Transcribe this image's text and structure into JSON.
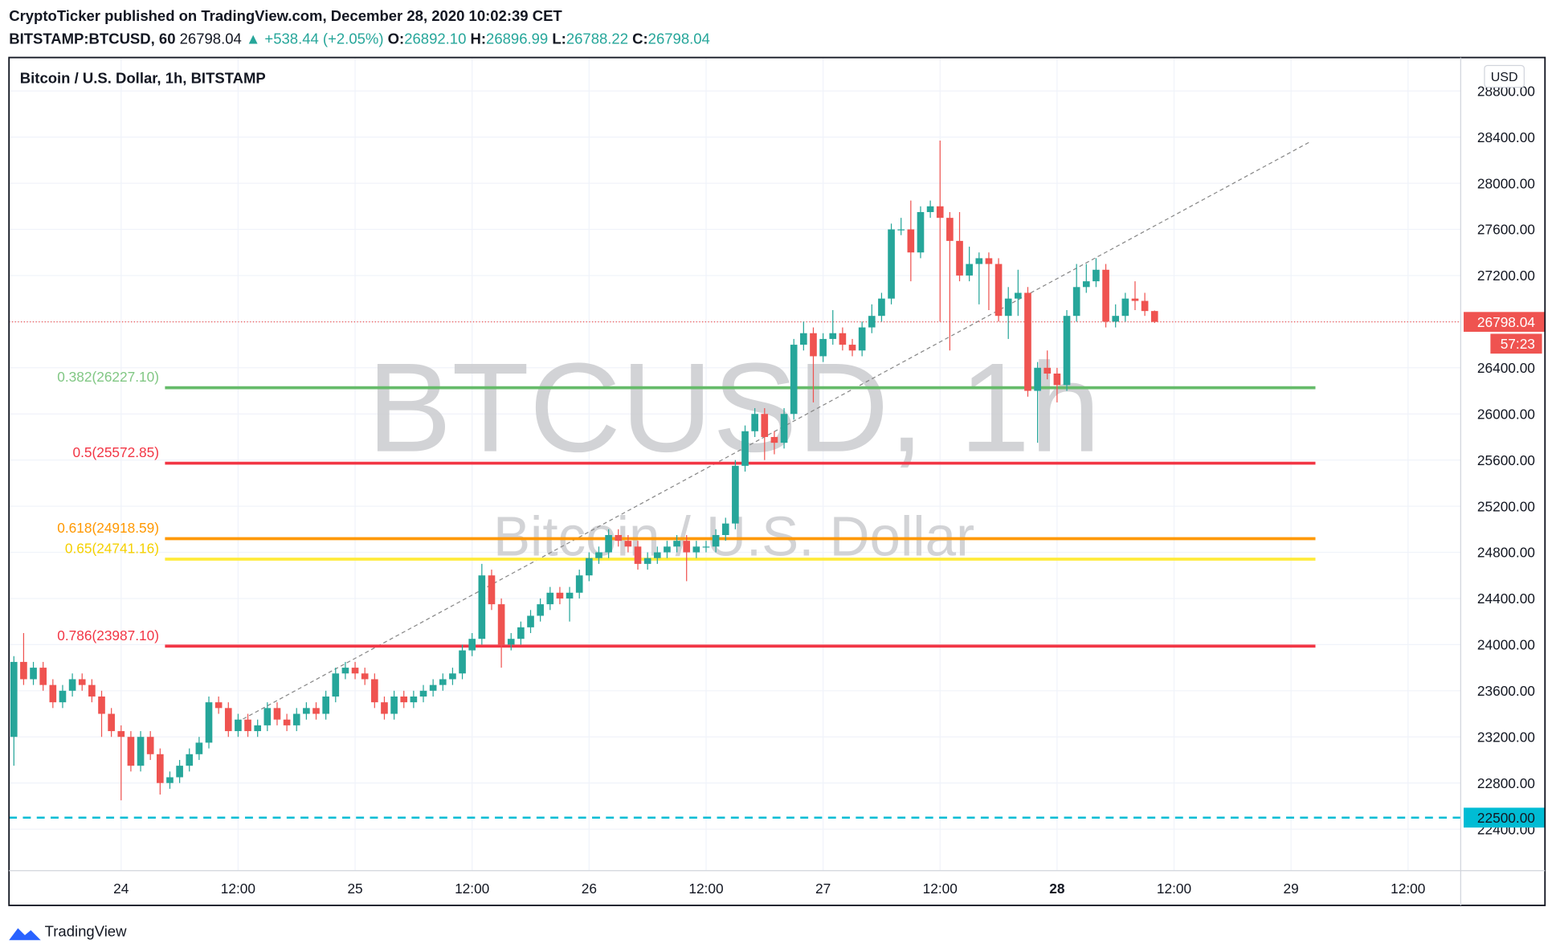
{
  "header": {
    "published": "CryptoTicker published on TradingView.com, December 28, 2020 10:02:39 CET",
    "symbol": "BITSTAMP:BTCUSD, 60",
    "last": "26798.04",
    "arrow": "▲",
    "change": "+538.44 (+2.05%)",
    "o_label": "O:",
    "o": "26892.10",
    "h_label": "H:",
    "h": "26896.99",
    "l_label": "L:",
    "l": "26788.22",
    "c_label": "C:",
    "c": "26798.04"
  },
  "footer": {
    "brand": "TradingView"
  },
  "chart_data": {
    "type": "candlestick",
    "title": "Bitcoin / U.S. Dollar, 1h, BITSTAMP",
    "currency": "USD",
    "watermark": "BTCUSD, 1h",
    "watermark_sub": "Bitcoin / U.S. Dollar",
    "up_color": "#26a69a",
    "down_color": "#ef5350",
    "xlim": [
      -0.5,
      148.4
    ],
    "xticks": [
      {
        "value": 11,
        "label": "24"
      },
      {
        "value": 23,
        "label": "12:00"
      },
      {
        "value": 35,
        "label": "25"
      },
      {
        "value": 47,
        "label": "12:00"
      },
      {
        "value": 59,
        "label": "26"
      },
      {
        "value": 71,
        "label": "12:00"
      },
      {
        "value": 83,
        "label": "27"
      },
      {
        "value": 95,
        "label": "12:00"
      },
      {
        "value": 107,
        "label": "28"
      },
      {
        "value": 119,
        "label": "12:00"
      },
      {
        "value": 131,
        "label": "29"
      },
      {
        "value": 143,
        "label": "12:00"
      }
    ],
    "bold_xtick": 8,
    "ylim": [
      22040,
      29090
    ],
    "yticks": [
      {
        "value": 22400,
        "label": "22400.00"
      },
      {
        "value": 22800,
        "label": "22800.00"
      },
      {
        "value": 23200,
        "label": "23200.00"
      },
      {
        "value": 23600,
        "label": "23600.00"
      },
      {
        "value": 24000,
        "label": "24000.00"
      },
      {
        "value": 24400,
        "label": "24400.00"
      },
      {
        "value": 24800,
        "label": "24800.00"
      },
      {
        "value": 25200,
        "label": "25200.00"
      },
      {
        "value": 25600,
        "label": "25600.00"
      },
      {
        "value": 26000,
        "label": "26000.00"
      },
      {
        "value": 26400,
        "label": "26400.00"
      },
      {
        "value": 26800,
        "label": "26800.00"
      },
      {
        "value": 27200,
        "label": "27200.00"
      },
      {
        "value": 27600,
        "label": "27600.00"
      },
      {
        "value": 28000,
        "label": "28000.00"
      },
      {
        "value": 28400,
        "label": "28400.00"
      },
      {
        "value": 28800,
        "label": "28800.00"
      }
    ],
    "open": [
      23200,
      23850,
      23700,
      23800,
      23650,
      23500,
      23600,
      23700,
      23650,
      23550,
      23400,
      23250,
      23200,
      22950,
      23200,
      23050,
      22800,
      22850,
      22950,
      23050,
      23150,
      23500,
      23450,
      23250,
      23350,
      23250,
      23300,
      23450,
      23350,
      23300,
      23400,
      23450,
      23400,
      23550,
      23750,
      23800,
      23750,
      23700,
      23500,
      23400,
      23550,
      23500,
      23550,
      23600,
      23650,
      23700,
      23750,
      23950,
      24050,
      24600,
      24350,
      24000,
      24050,
      24150,
      24250,
      24350,
      24450,
      24400,
      24450,
      24600,
      24750,
      24800,
      24950,
      24900,
      24850,
      24700,
      24750,
      24800,
      24850,
      24900,
      24800,
      24850,
      24850,
      24950,
      25050,
      25550,
      25850,
      26000,
      25800,
      25750,
      26000,
      26600,
      26700,
      26500,
      26650,
      26700,
      26600,
      26550,
      26750,
      26850,
      27000,
      27600,
      27600,
      27400,
      27750,
      27800,
      27700,
      27500,
      27200,
      27300,
      27350,
      27300,
      26850,
      27000,
      27050,
      26200,
      26400,
      26350,
      26250,
      26850,
      27100,
      27150,
      27250,
      26800,
      26850,
      27000,
      26980,
      26892.1
    ],
    "high": [
      23900,
      24100,
      23850,
      23850,
      23700,
      23650,
      23750,
      23750,
      23700,
      23600,
      23450,
      23300,
      23250,
      23250,
      23250,
      23100,
      22900,
      23000,
      23100,
      23200,
      23550,
      23550,
      23500,
      23400,
      23400,
      23350,
      23500,
      23500,
      23400,
      23450,
      23500,
      23500,
      23600,
      23800,
      23850,
      23850,
      23800,
      23750,
      23550,
      23600,
      23600,
      23600,
      23650,
      23700,
      23750,
      23800,
      24000,
      24100,
      24700,
      24650,
      24400,
      24100,
      24200,
      24300,
      24400,
      24500,
      24500,
      24500,
      24650,
      24800,
      24850,
      25000,
      25000,
      24950,
      24900,
      24800,
      24850,
      24900,
      24950,
      24950,
      24900,
      24900,
      25000,
      25100,
      25600,
      25900,
      26050,
      26050,
      25850,
      26050,
      26650,
      26800,
      26750,
      26700,
      26900,
      26750,
      26650,
      26800,
      26950,
      27050,
      27650,
      27700,
      27850,
      27800,
      27850,
      28370,
      27750,
      27750,
      27450,
      27400,
      27400,
      27350,
      27100,
      27250,
      27100,
      26450,
      26550,
      26400,
      26900,
      27300,
      27300,
      27350,
      27300,
      26950,
      27050,
      27150,
      27050,
      26896.99
    ],
    "low": [
      22950,
      23650,
      23650,
      23600,
      23450,
      23450,
      23550,
      23600,
      23500,
      23200,
      23200,
      22650,
      22900,
      22900,
      23000,
      22700,
      22750,
      22800,
      22900,
      23000,
      23100,
      23400,
      23200,
      23200,
      23200,
      23200,
      23250,
      23300,
      23250,
      23250,
      23350,
      23350,
      23350,
      23500,
      23700,
      23700,
      23650,
      23450,
      23350,
      23350,
      23450,
      23450,
      23500,
      23550,
      23600,
      23650,
      23700,
      23900,
      24000,
      24300,
      23800,
      23950,
      24000,
      24100,
      24200,
      24300,
      24350,
      24200,
      24400,
      24550,
      24700,
      24750,
      24850,
      24800,
      24650,
      24650,
      24700,
      24750,
      24800,
      24550,
      24750,
      24800,
      24800,
      24900,
      25000,
      25500,
      25800,
      25600,
      25650,
      25700,
      25950,
      26550,
      26100,
      26450,
      26600,
      26550,
      26500,
      26500,
      26700,
      26800,
      26950,
      27550,
      27150,
      27350,
      27700,
      26800,
      26550,
      27150,
      27150,
      26950,
      26900,
      26800,
      26650,
      26850,
      26150,
      25750,
      26300,
      26100,
      26200,
      26800,
      27050,
      27100,
      26750,
      26750,
      26800,
      26900,
      26850,
      26788.22
    ],
    "close": [
      23850,
      23700,
      23800,
      23650,
      23500,
      23600,
      23700,
      23650,
      23550,
      23400,
      23250,
      23200,
      22950,
      23200,
      23050,
      22800,
      22850,
      22950,
      23050,
      23150,
      23500,
      23450,
      23250,
      23350,
      23250,
      23300,
      23450,
      23350,
      23300,
      23400,
      23450,
      23400,
      23550,
      23750,
      23800,
      23750,
      23700,
      23500,
      23400,
      23550,
      23500,
      23550,
      23600,
      23650,
      23700,
      23750,
      23950,
      24050,
      24600,
      24350,
      24000,
      24050,
      24150,
      24250,
      24350,
      24450,
      24400,
      24450,
      24600,
      24750,
      24800,
      24950,
      24900,
      24850,
      24700,
      24750,
      24800,
      24850,
      24900,
      24800,
      24850,
      24850,
      24950,
      25050,
      25550,
      25850,
      26000,
      25800,
      25750,
      26000,
      26600,
      26700,
      26500,
      26650,
      26700,
      26600,
      26550,
      26750,
      26850,
      27000,
      27600,
      27600,
      27400,
      27750,
      27800,
      27700,
      27500,
      27200,
      27300,
      27350,
      27300,
      26850,
      27000,
      27050,
      26200,
      26400,
      26350,
      26250,
      26850,
      27100,
      27150,
      27250,
      26800,
      26850,
      27000,
      26980,
      26892.1,
      26798.04
    ],
    "fib_levels": [
      {
        "label": "0.382(26227.10)",
        "value": 26227.1,
        "color": "#66bb6a",
        "label_color": "#81c784"
      },
      {
        "label": "0.5(25572.85)",
        "value": 25572.85,
        "color": "#f23645",
        "label_color": "#f23645"
      },
      {
        "label": "0.618(24918.59)",
        "value": 24918.59,
        "color": "#ff9800",
        "label_color": "#ff9800"
      },
      {
        "label": "0.65(24741.16)",
        "value": 24741.16,
        "color": "#ffeb3b",
        "label_color": "#f5d000"
      },
      {
        "label": "0.786(23987.10)",
        "value": 23987.1,
        "color": "#f23645",
        "label_color": "#f23645"
      }
    ],
    "fib_x": [
      15.5,
      133.5
    ],
    "support": {
      "value": 22500,
      "label": "22500.00",
      "color": "#00bcd4"
    },
    "last_price": {
      "value": 26798.04,
      "label": "26798.04",
      "countdown": "57:23",
      "color": "#ef5350"
    },
    "trendline": {
      "x": [
        23.5,
        132.9
      ],
      "y": [
        23355,
        28357
      ]
    }
  }
}
